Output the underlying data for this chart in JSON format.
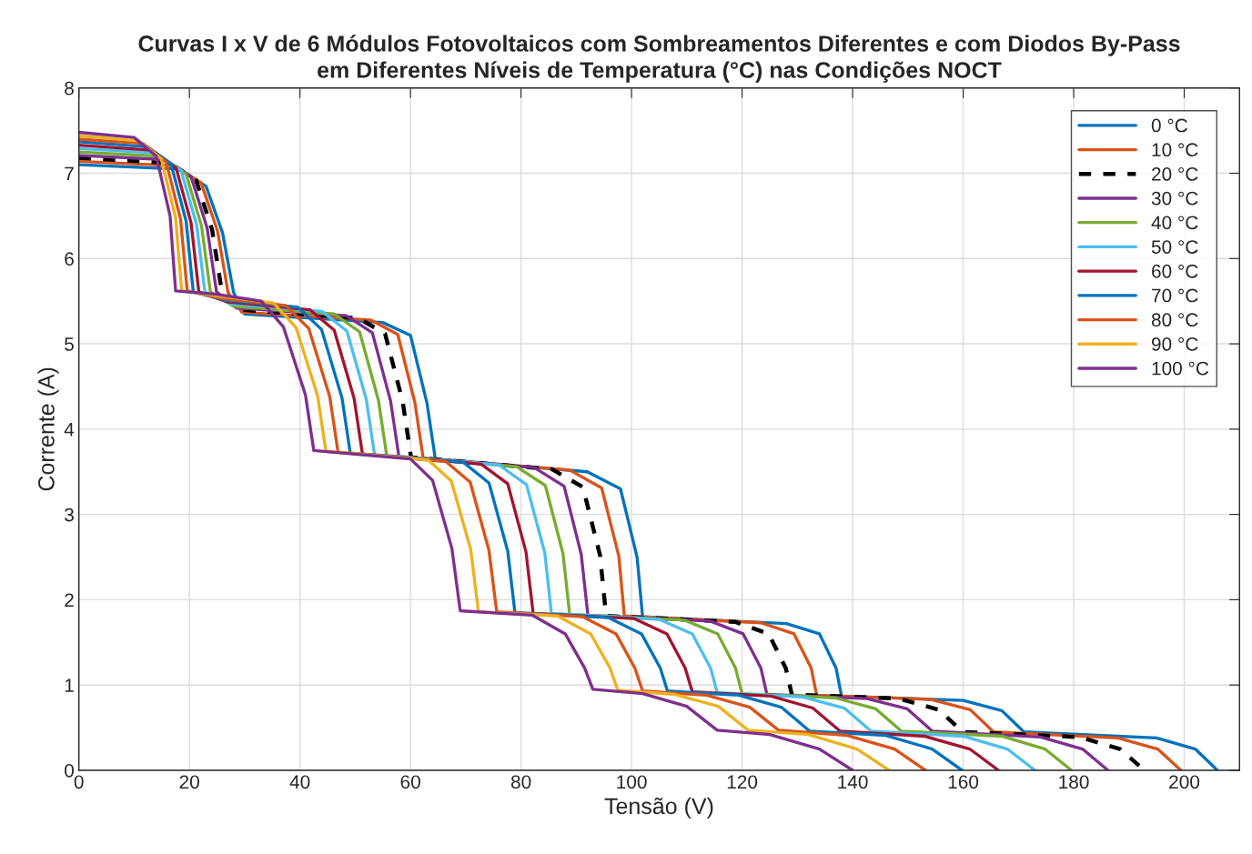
{
  "chart_data": {
    "type": "line",
    "title": "Curvas I x V de 6 Módulos Fotovoltaicos com Sombreamentos Diferentes e com Diodos By-Pass\nem Diferentes Níveis de Temperatura (°C) nas Condições NOCT",
    "xlabel": "Tensão (V)",
    "ylabel": "Corrente (A)",
    "xlim": [
      0,
      210
    ],
    "ylim": [
      0,
      8
    ],
    "xticks": [
      0,
      20,
      40,
      60,
      80,
      100,
      120,
      140,
      160,
      180,
      200
    ],
    "yticks": [
      0,
      1,
      2,
      3,
      4,
      5,
      6,
      7,
      8
    ],
    "grid": true,
    "legend": "top right",
    "marker": "none",
    "line_style": "solid",
    "series": [
      {
        "name": "0 °C",
        "color": "#0072bd",
        "x": [
          0,
          18,
          23,
          26,
          28,
          30,
          55,
          60,
          63,
          64.5,
          92,
          98,
          101,
          102,
          128,
          134,
          137,
          138,
          160,
          167,
          171,
          195,
          202,
          206
        ],
        "values": [
          7.1,
          7.05,
          6.85,
          6.3,
          5.6,
          5.35,
          5.25,
          5.1,
          4.3,
          3.65,
          3.5,
          3.3,
          2.5,
          1.8,
          1.72,
          1.6,
          1.2,
          0.87,
          0.82,
          0.7,
          0.45,
          0.38,
          0.25,
          0
        ]
      },
      {
        "name": "10 °C",
        "color": "#d95319",
        "x": [
          0,
          17.2,
          22.1,
          25.1,
          27.0,
          29.5,
          52.8,
          57.7,
          60.8,
          62.3,
          88.8,
          94.6,
          97.7,
          98.7,
          123.4,
          129.4,
          132.5,
          133.5,
          154.2,
          161.3,
          165.5,
          188,
          195.2,
          199.4
        ],
        "values": [
          7.14,
          7.09,
          6.89,
          6.32,
          5.6,
          5.37,
          5.28,
          5.11,
          4.31,
          3.66,
          3.52,
          3.31,
          2.51,
          1.81,
          1.73,
          1.6,
          1.2,
          0.88,
          0.83,
          0.71,
          0.45,
          0.38,
          0.25,
          0
        ]
      },
      {
        "name": "20 °C",
        "color": "#000000",
        "line_style": "dashed",
        "x": [
          0,
          16.4,
          21.2,
          24.1,
          25.9,
          29,
          50.6,
          55.4,
          58.6,
          60.1,
          85.6,
          91.2,
          94.3,
          95.4,
          118.8,
          124.8,
          127.9,
          129,
          148.4,
          155.6,
          159.9,
          181,
          188.4,
          192.8
        ],
        "values": [
          7.18,
          7.12,
          6.92,
          6.34,
          5.6,
          5.4,
          5.3,
          5.12,
          4.32,
          3.67,
          3.53,
          3.32,
          2.52,
          1.81,
          1.74,
          1.6,
          1.2,
          0.89,
          0.84,
          0.71,
          0.45,
          0.39,
          0.25,
          0
        ]
      },
      {
        "name": "30 °C",
        "color": "#7e2f8e",
        "x": [
          0,
          15.6,
          20.3,
          23.2,
          24.9,
          28.5,
          48.4,
          53.1,
          56.4,
          57.9,
          82.4,
          87.8,
          90.9,
          92.1,
          114.2,
          120.2,
          123.4,
          124.5,
          142.6,
          149.9,
          154.4,
          174,
          181.6,
          186.2
        ],
        "values": [
          7.21,
          7.16,
          6.96,
          6.36,
          5.61,
          5.42,
          5.33,
          5.13,
          4.33,
          3.68,
          3.55,
          3.33,
          2.53,
          1.82,
          1.75,
          1.6,
          1.2,
          0.89,
          0.84,
          0.72,
          0.46,
          0.39,
          0.25,
          0
        ]
      },
      {
        "name": "40 °C",
        "color": "#77ac30",
        "x": [
          0,
          14.8,
          19.4,
          22.2,
          23.8,
          28,
          46.2,
          50.8,
          54.2,
          55.7,
          79.2,
          84.4,
          87.6,
          88.8,
          109.6,
          115.6,
          118.8,
          120,
          136.8,
          144.2,
          148.8,
          167,
          174.8,
          179.6
        ],
        "values": [
          7.25,
          7.2,
          6.99,
          6.38,
          5.61,
          5.44,
          5.35,
          5.14,
          4.34,
          3.69,
          3.56,
          3.34,
          2.54,
          1.83,
          1.76,
          1.6,
          1.2,
          0.9,
          0.85,
          0.72,
          0.46,
          0.4,
          0.25,
          0
        ]
      },
      {
        "name": "50 °C",
        "color": "#4dbeee",
        "x": [
          0,
          14,
          18.5,
          21.3,
          22.8,
          27.5,
          44,
          48.5,
          52,
          53.5,
          76,
          81,
          84.3,
          85.5,
          105,
          111,
          114.3,
          115.5,
          131,
          138.5,
          143.3,
          160,
          168,
          173
        ],
        "values": [
          7.29,
          7.24,
          7.03,
          6.4,
          5.61,
          5.47,
          5.38,
          5.15,
          4.35,
          3.7,
          3.58,
          3.35,
          2.55,
          1.84,
          1.77,
          1.6,
          1.2,
          0.91,
          0.86,
          0.73,
          0.46,
          0.4,
          0.25,
          0
        ]
      },
      {
        "name": "60 °C",
        "color": "#a2142f",
        "x": [
          0,
          13.2,
          17.6,
          20.3,
          21.7,
          27,
          41.8,
          46.2,
          49.8,
          51.3,
          72.8,
          77.6,
          80.9,
          82.2,
          100.4,
          106.4,
          109.7,
          111,
          125.2,
          132.8,
          137.7,
          153,
          161.2,
          166.4
        ],
        "values": [
          7.33,
          7.27,
          7.06,
          6.42,
          5.61,
          5.49,
          5.4,
          5.16,
          4.36,
          3.71,
          3.59,
          3.36,
          2.56,
          1.84,
          1.78,
          1.6,
          1.2,
          0.92,
          0.87,
          0.73,
          0.46,
          0.4,
          0.25,
          0
        ]
      },
      {
        "name": "70 °C",
        "color": "#0072bd",
        "x": [
          0,
          12.4,
          16.7,
          19.4,
          20.7,
          26.5,
          39.6,
          43.9,
          47.6,
          49.1,
          69.6,
          74.2,
          77.6,
          78.9,
          95.8,
          101.8,
          105.2,
          106.5,
          119.4,
          127.1,
          132.2,
          146,
          154.4,
          159.8
        ],
        "values": [
          7.37,
          7.31,
          7.1,
          6.44,
          5.61,
          5.51,
          5.43,
          5.17,
          4.37,
          3.72,
          3.61,
          3.37,
          2.57,
          1.85,
          1.79,
          1.6,
          1.2,
          0.93,
          0.88,
          0.74,
          0.46,
          0.41,
          0.25,
          0
        ]
      },
      {
        "name": "80 °C",
        "color": "#d95319",
        "x": [
          0,
          11.6,
          15.8,
          18.4,
          19.6,
          26,
          37.4,
          41.6,
          45.4,
          46.9,
          66.4,
          70.8,
          74.2,
          75.6,
          91.2,
          97.2,
          100.6,
          102,
          113.6,
          121.4,
          126.6,
          139,
          147.6,
          153.2
        ],
        "values": [
          7.4,
          7.35,
          7.13,
          6.46,
          5.62,
          5.53,
          5.45,
          5.18,
          4.38,
          3.73,
          3.62,
          3.38,
          2.58,
          1.86,
          1.8,
          1.6,
          1.2,
          0.93,
          0.88,
          0.74,
          0.47,
          0.41,
          0.25,
          0
        ]
      },
      {
        "name": "90 °C",
        "color": "#edb120",
        "x": [
          0,
          10.8,
          14.9,
          17.5,
          18.6,
          25.5,
          35.2,
          39.3,
          43.2,
          44.7,
          63.2,
          67.4,
          70.9,
          72.3,
          86.6,
          92.6,
          96.1,
          97.5,
          107.8,
          115.7,
          121.1,
          132,
          140.8,
          146.6
        ],
        "values": [
          7.44,
          7.38,
          7.17,
          6.48,
          5.62,
          5.56,
          5.48,
          5.19,
          4.39,
          3.74,
          3.64,
          3.39,
          2.59,
          1.86,
          1.81,
          1.6,
          1.2,
          0.94,
          0.89,
          0.75,
          0.47,
          0.42,
          0.25,
          0
        ]
      },
      {
        "name": "100 °C",
        "color": "#7e2f8e",
        "x": [
          0,
          10,
          14,
          16.5,
          17.5,
          25,
          33,
          37,
          41,
          42.5,
          60,
          64,
          67.5,
          69,
          82,
          88,
          91.5,
          93,
          102,
          110,
          115.5,
          125,
          134,
          140
        ],
        "values": [
          7.48,
          7.42,
          7.2,
          6.5,
          5.62,
          5.58,
          5.5,
          5.2,
          4.4,
          3.75,
          3.65,
          3.4,
          2.6,
          1.87,
          1.82,
          1.6,
          1.2,
          0.95,
          0.9,
          0.75,
          0.47,
          0.42,
          0.25,
          0
        ]
      }
    ]
  }
}
